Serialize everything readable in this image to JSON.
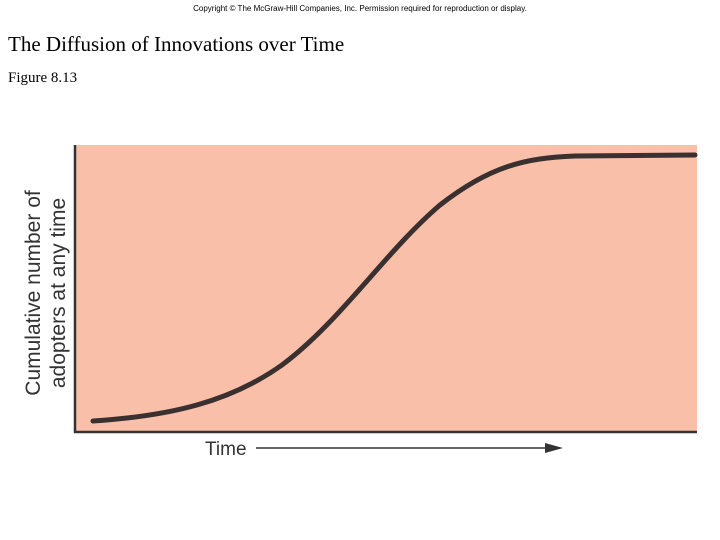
{
  "header": {
    "copyright": "Copyright © The McGraw-Hill Companies, Inc. Permission required for reproduction or display.",
    "title": "The Diffusion of Innovations over Time",
    "figure": "Figure 8.13"
  },
  "chart": {
    "y_label": [
      "Cumulative number of",
      "adopters at any time"
    ],
    "x_label": "Time"
  }
}
